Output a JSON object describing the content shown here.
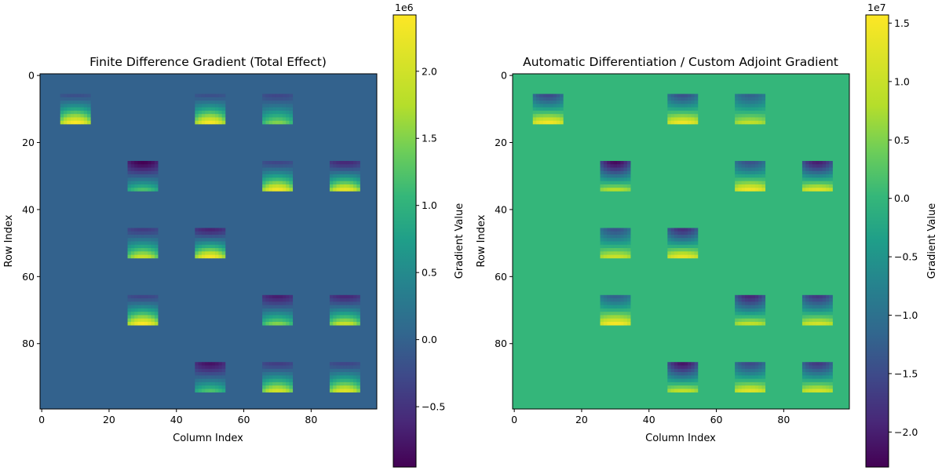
{
  "chart_data": [
    {
      "type": "heatmap",
      "title": "Finite Difference Gradient (Total Effect)",
      "xlabel": "Column Index",
      "ylabel": "Row Index",
      "xlim": [
        -0.5,
        99.5
      ],
      "ylim": [
        99.5,
        -0.5
      ],
      "x_ticks": [
        "0",
        "20",
        "40",
        "60",
        "80"
      ],
      "y_ticks": [
        "0",
        "20",
        "40",
        "60",
        "80"
      ],
      "grid": "off",
      "colormap": "viridis",
      "background_value": 0,
      "patch_size": [
        9,
        9
      ],
      "patches": [
        {
          "row": 10,
          "col": 10,
          "top": -200000,
          "bottom": 2400000
        },
        {
          "row": 10,
          "col": 50,
          "top": -200000,
          "bottom": 2350000
        },
        {
          "row": 10,
          "col": 70,
          "top": -300000,
          "bottom": 1500000
        },
        {
          "row": 30,
          "col": 30,
          "top": -950000,
          "bottom": 1200000
        },
        {
          "row": 30,
          "col": 70,
          "top": -300000,
          "bottom": 2300000
        },
        {
          "row": 30,
          "col": 90,
          "top": -600000,
          "bottom": 2200000
        },
        {
          "row": 50,
          "col": 30,
          "top": -400000,
          "bottom": 1900000
        },
        {
          "row": 50,
          "col": 50,
          "top": -650000,
          "bottom": 2300000
        },
        {
          "row": 70,
          "col": 30,
          "top": -300000,
          "bottom": 2400000
        },
        {
          "row": 70,
          "col": 70,
          "top": -700000,
          "bottom": 1500000
        },
        {
          "row": 70,
          "col": 90,
          "top": -600000,
          "bottom": 1900000
        },
        {
          "row": 90,
          "col": 50,
          "top": -800000,
          "bottom": 1200000
        },
        {
          "row": 90,
          "col": 70,
          "top": -400000,
          "bottom": 2000000
        },
        {
          "row": 90,
          "col": 90,
          "top": -300000,
          "bottom": 2100000
        }
      ],
      "colorbar": {
        "label": "Gradient Value",
        "exponent_label": "1e6",
        "range": [
          -950000,
          2420000
        ],
        "ticks": [
          -500000,
          0,
          500000,
          1000000,
          1500000,
          2000000
        ],
        "tick_labels": [
          "−0.5",
          "0.0",
          "0.5",
          "1.0",
          "1.5",
          "2.0"
        ]
      }
    },
    {
      "type": "heatmap",
      "title": "Automatic Differentiation / Custom Adjoint Gradient",
      "xlabel": "Column Index",
      "ylabel": "Row Index",
      "xlim": [
        -0.5,
        99.5
      ],
      "ylim": [
        99.5,
        -0.5
      ],
      "x_ticks": [
        "0",
        "20",
        "40",
        "60",
        "80"
      ],
      "y_ticks": [
        "0",
        "20",
        "40",
        "60",
        "80"
      ],
      "grid": "off",
      "colormap": "viridis",
      "background_value": 0,
      "patch_size": [
        9,
        9
      ],
      "patches": [
        {
          "row": 10,
          "col": 10,
          "top": -15000000,
          "bottom": 14500000
        },
        {
          "row": 10,
          "col": 50,
          "top": -14000000,
          "bottom": 14000000
        },
        {
          "row": 10,
          "col": 70,
          "top": -12000000,
          "bottom": 9000000
        },
        {
          "row": 30,
          "col": 30,
          "top": -22000000,
          "bottom": 8000000
        },
        {
          "row": 30,
          "col": 70,
          "top": -14000000,
          "bottom": 14000000
        },
        {
          "row": 30,
          "col": 90,
          "top": -20000000,
          "bottom": 12000000
        },
        {
          "row": 50,
          "col": 30,
          "top": -14000000,
          "bottom": 10000000
        },
        {
          "row": 50,
          "col": 50,
          "top": -18000000,
          "bottom": 13000000
        },
        {
          "row": 70,
          "col": 30,
          "top": -12000000,
          "bottom": 15000000
        },
        {
          "row": 70,
          "col": 70,
          "top": -19000000,
          "bottom": 9000000
        },
        {
          "row": 70,
          "col": 90,
          "top": -17000000,
          "bottom": 11000000
        },
        {
          "row": 90,
          "col": 50,
          "top": -21000000,
          "bottom": 9000000
        },
        {
          "row": 90,
          "col": 70,
          "top": -15000000,
          "bottom": 12000000
        },
        {
          "row": 90,
          "col": 90,
          "top": -17000000,
          "bottom": 11000000
        }
      ],
      "colorbar": {
        "label": "Gradient Value",
        "exponent_label": "1e7",
        "range": [
          -23000000,
          15700000
        ],
        "ticks": [
          -20000000,
          -15000000,
          -10000000,
          -5000000,
          0,
          5000000,
          10000000,
          15000000
        ],
        "tick_labels": [
          "−2.0",
          "−1.5",
          "−1.0",
          "−0.5",
          "0.0",
          "0.5",
          "1.0",
          "1.5"
        ]
      }
    }
  ]
}
